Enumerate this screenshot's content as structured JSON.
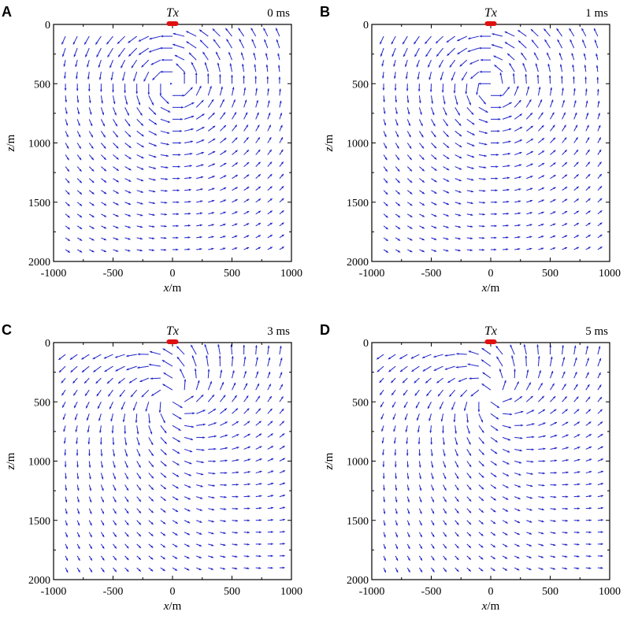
{
  "figure": {
    "colors": {
      "arrow": "#1f24c8",
      "transmitter": "#e01010",
      "axis": "#000000"
    }
  },
  "chart_data": [
    {
      "type": "vector-field",
      "panel_label": "A",
      "time_label": "0 ms",
      "source_label": "Tx",
      "xlabel_var": "x",
      "xlabel_unit": "/m",
      "ylabel_var": "z",
      "ylabel_unit": "/m",
      "xlim": [
        -1000,
        1000
      ],
      "ylim": [
        2000,
        0
      ],
      "xticks": [
        -1000,
        -500,
        0,
        500,
        1000
      ],
      "yticks": [
        0,
        500,
        1000,
        1500,
        2000
      ],
      "transmitter_x_range": [
        -50,
        50
      ],
      "field_center": [
        0,
        500
      ],
      "strength": 1.0,
      "radial": 0.0
    },
    {
      "type": "vector-field",
      "panel_label": "B",
      "time_label": "1 ms",
      "source_label": "Tx",
      "xlabel_var": "x",
      "xlabel_unit": "/m",
      "ylabel_var": "z",
      "ylabel_unit": "/m",
      "xlim": [
        -1000,
        1000
      ],
      "ylim": [
        2000,
        0
      ],
      "xticks": [
        -1000,
        -500,
        0,
        500,
        1000
      ],
      "yticks": [
        0,
        500,
        1000,
        1500,
        2000
      ],
      "transmitter_x_range": [
        -50,
        50
      ],
      "field_center": [
        0,
        520
      ],
      "strength": 0.9,
      "radial": 0.0
    },
    {
      "type": "vector-field",
      "panel_label": "C",
      "time_label": "3 ms",
      "source_label": "Tx",
      "xlabel_var": "x",
      "xlabel_unit": "/m",
      "ylabel_var": "z",
      "ylabel_unit": "/m",
      "xlim": [
        -1000,
        1000
      ],
      "ylim": [
        2000,
        0
      ],
      "xticks": [
        -1000,
        -500,
        0,
        500,
        1000
      ],
      "yticks": [
        0,
        500,
        1000,
        1500,
        2000
      ],
      "transmitter_x_range": [
        -50,
        50
      ],
      "field_center": [
        0,
        450
      ],
      "strength": 0.85,
      "radial": 0.6
    },
    {
      "type": "vector-field",
      "panel_label": "D",
      "time_label": "5 ms",
      "source_label": "Tx",
      "xlabel_var": "x",
      "xlabel_unit": "/m",
      "ylabel_var": "z",
      "ylabel_unit": "/m",
      "xlim": [
        -1000,
        1000
      ],
      "ylim": [
        2000,
        0
      ],
      "xticks": [
        -1000,
        -500,
        0,
        500,
        1000
      ],
      "yticks": [
        0,
        500,
        1000,
        1500,
        2000
      ],
      "transmitter_x_range": [
        -50,
        50
      ],
      "field_center": [
        0,
        430
      ],
      "strength": 0.75,
      "radial": 0.7
    }
  ]
}
